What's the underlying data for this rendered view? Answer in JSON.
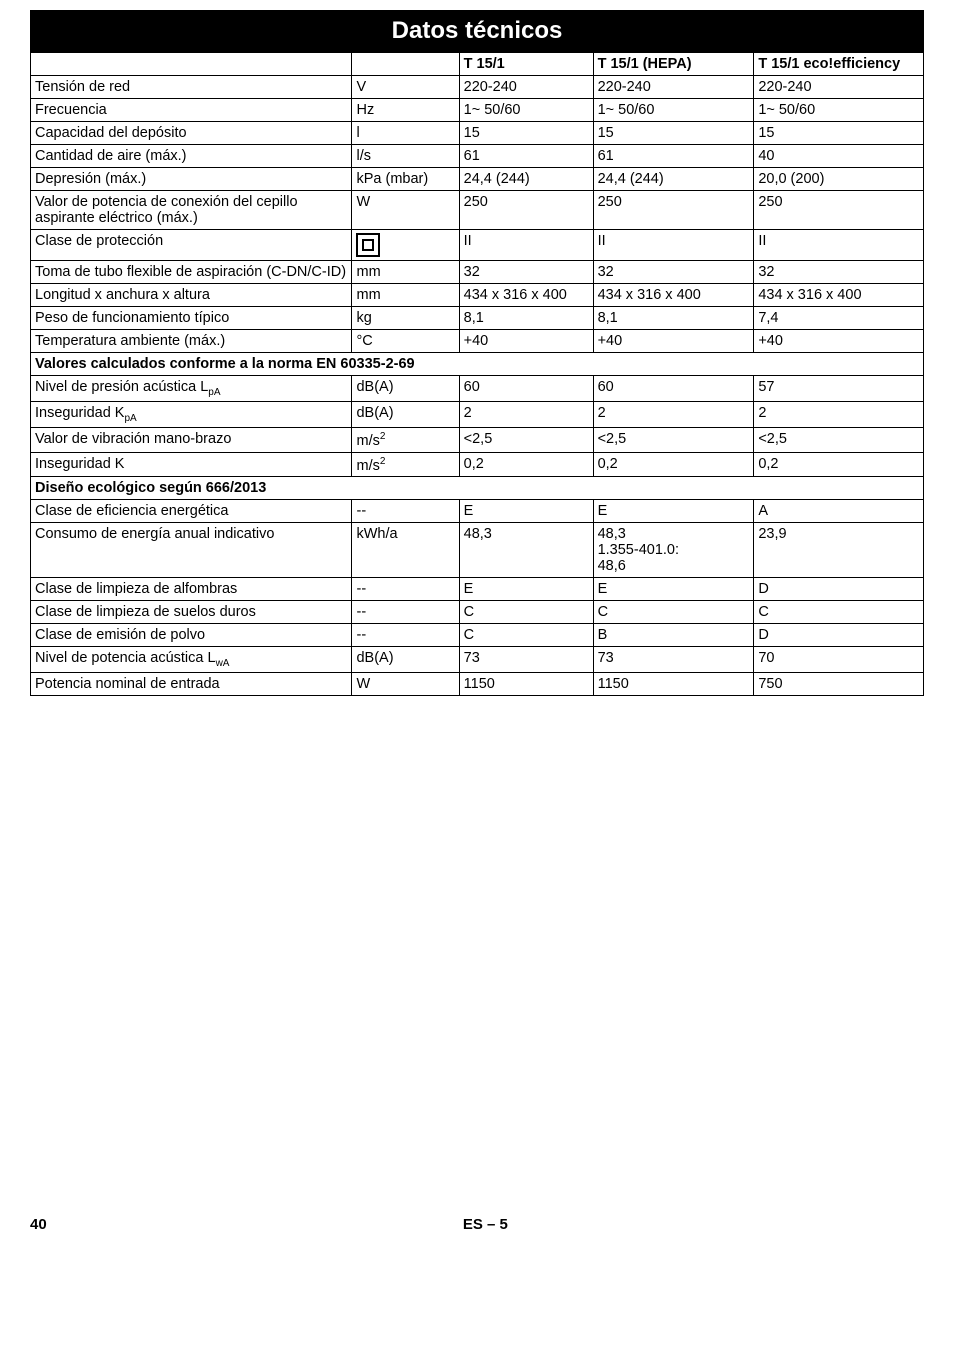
{
  "title": "Datos técnicos",
  "columns": {
    "c1": "T 15/1",
    "c2": "T 15/1 (HEPA)",
    "c3": "T 15/1 eco!efficiency"
  },
  "rows": {
    "r0": {
      "label": "Tensión de red",
      "unit": "V",
      "v1": "220-240",
      "v2": "220-240",
      "v3": "220-240"
    },
    "r1": {
      "label": "Frecuencia",
      "unit": "Hz",
      "v1": "1~ 50/60",
      "v2": "1~ 50/60",
      "v3": "1~ 50/60"
    },
    "r2": {
      "label": "Capacidad del depósito",
      "unit": "l",
      "v1": "15",
      "v2": "15",
      "v3": "15"
    },
    "r3": {
      "label": "Cantidad de aire (máx.)",
      "unit": "l/s",
      "v1": "61",
      "v2": "61",
      "v3": "40"
    },
    "r4": {
      "label": "Depresión (máx.)",
      "unit": "kPa (mbar)",
      "v1": "24,4 (244)",
      "v2": "24,4 (244)",
      "v3": "20,0 (200)"
    },
    "r5": {
      "label": "Valor de potencia de conexión del cepillo aspirante eléctrico (máx.)",
      "unit": "W",
      "v1": "250",
      "v2": "250",
      "v3": "250"
    },
    "r6": {
      "label": "Clase de protección",
      "unit": "",
      "v1": "II",
      "v2": "II",
      "v3": "II"
    },
    "r7": {
      "label": "Toma de tubo flexible de aspiración (C-DN/C-ID)",
      "unit": "mm",
      "v1": "32",
      "v2": "32",
      "v3": "32"
    },
    "r8": {
      "label": "Longitud x anchura x altura",
      "unit": "mm",
      "v1": "434 x 316 x 400",
      "v2": "434 x 316 x 400",
      "v3": "434 x 316 x 400"
    },
    "r9": {
      "label": "Peso de funcionamiento típico",
      "unit": "kg",
      "v1": "8,1",
      "v2": "8,1",
      "v3": "7,4"
    },
    "r10": {
      "label": "Temperatura ambiente (máx.)",
      "unit": "°C",
      "v1": "+40",
      "v2": "+40",
      "v3": "+40"
    },
    "s1": {
      "label": "Valores calculados conforme a la norma EN 60335-2-69"
    },
    "r11": {
      "label": "Nivel de presión acústica L",
      "sub": "pA",
      "unit": "dB(A)",
      "v1": "60",
      "v2": "60",
      "v3": "57"
    },
    "r12": {
      "label": "Inseguridad K",
      "sub": "pA",
      "unit": "dB(A)",
      "v1": "2",
      "v2": "2",
      "v3": "2"
    },
    "r13": {
      "label": "Valor de vibración mano-brazo",
      "unit": "m/s",
      "sup": "2",
      "v1": "<2,5",
      "v2": "<2,5",
      "v3": "<2,5"
    },
    "r14": {
      "label": "Inseguridad K",
      "unit": "m/s",
      "sup": "2",
      "v1": "0,2",
      "v2": "0,2",
      "v3": "0,2"
    },
    "s2": {
      "label": "Diseño ecológico según 666/2013"
    },
    "r15": {
      "label": "Clase de eficiencia energética",
      "unit": "--",
      "v1": "E",
      "v2": "E",
      "v3": "A"
    },
    "r16": {
      "label": "Consumo de energía anual indicativo",
      "unit": "kWh/a",
      "v1": "48,3",
      "v2": "48,3\n1.355-401.0:\n48,6",
      "v3": "23,9"
    },
    "r17": {
      "label": "Clase de limpieza de alfombras",
      "unit": "--",
      "v1": "E",
      "v2": "E",
      "v3": "D"
    },
    "r18": {
      "label": "Clase de limpieza de suelos duros",
      "unit": "--",
      "v1": "C",
      "v2": "C",
      "v3": "C"
    },
    "r19": {
      "label": "Clase de emisión de polvo",
      "unit": "--",
      "v1": "C",
      "v2": "B",
      "v3": "D"
    },
    "r20": {
      "label": "Nivel de potencia acústica L",
      "sub": "wA",
      "unit": "dB(A)",
      "v1": "73",
      "v2": "73",
      "v3": "70"
    },
    "r21": {
      "label": "Potencia nominal de entrada",
      "unit": "W",
      "v1": "1150",
      "v2": "1150",
      "v3": "750"
    }
  },
  "footer": {
    "page": "40",
    "lang": "ES – 5"
  }
}
